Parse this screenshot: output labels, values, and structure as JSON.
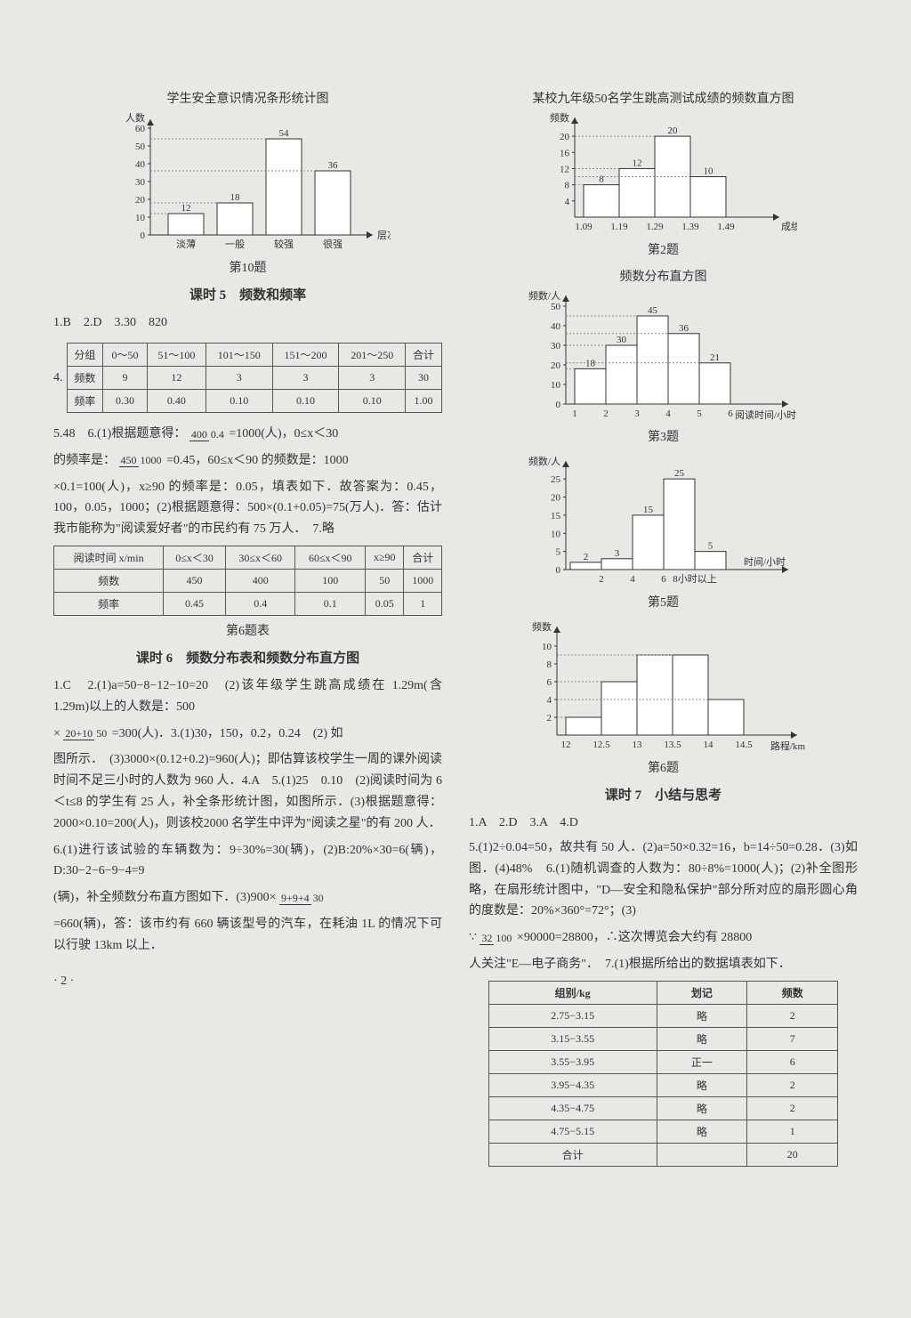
{
  "col1": {
    "chart10": {
      "title": "学生安全意识情况条形统计图",
      "ylabel": "人数",
      "xlabel": "层次",
      "categories": [
        "淡薄",
        "一般",
        "较强",
        "很强"
      ],
      "values": [
        12,
        18,
        54,
        36
      ],
      "yticks": [
        0,
        10,
        20,
        30,
        40,
        50,
        60
      ],
      "ymax": 60,
      "bar_color": "#ffffff",
      "border_color": "#333333",
      "caption": "第10题"
    },
    "section5_title": "课时 5　频数和频率",
    "answers5": "1.B　2.D　3.30　820",
    "table4": {
      "cols": [
        "分组",
        "0～50",
        "51～100",
        "101～150",
        "151～200",
        "201～250",
        "合计"
      ],
      "row1": [
        "频数",
        "9",
        "12",
        "3",
        "3",
        "3",
        "30"
      ],
      "row2": [
        "频率",
        "0.30",
        "0.40",
        "0.10",
        "0.10",
        "0.10",
        "1.00"
      ],
      "prefix": "4."
    },
    "text5a": "5.48　6.(1)根据题意得：",
    "frac1": {
      "n": "400",
      "d": "0.4"
    },
    "text5b": "=1000(人)，0≤x＜30",
    "text5c": "的频率是：",
    "frac2": {
      "n": "450",
      "d": "1000"
    },
    "text5d": "=0.45，60≤x＜90 的频数是：1000",
    "text5e": "×0.1=100(人)，x≥90 的频率是：0.05，填表如下．故答案为：0.45，100，0.05，1000；(2)根据题意得：500×(0.1+0.05)=75(万人)．答：估计我市能称为\"阅读爱好者\"的市民约有 75 万人．　7.略",
    "table6": {
      "cols": [
        "阅读时间 x/min",
        "0≤x＜30",
        "30≤x＜60",
        "60≤x＜90",
        "x≥90",
        "合计"
      ],
      "row1": [
        "频数",
        "450",
        "400",
        "100",
        "50",
        "1000"
      ],
      "row2": [
        "频率",
        "0.45",
        "0.4",
        "0.1",
        "0.05",
        "1"
      ]
    },
    "caption6": "第6题表",
    "section6_title": "课时 6　频数分布表和频数分布直方图",
    "text6a": "1.C　2.(1)a=50−8−12−10=20　(2)该年级学生跳高成绩在 1.29m(含 1.29m)以上的人数是：500",
    "text6b": "×",
    "frac3": {
      "n": "20+10",
      "d": "50"
    },
    "text6c": "=300(人)．3.(1)30，150，0.2，0.24　(2) 如",
    "text6d": "图所示．　(3)3000×(0.12+0.2)=960(人)；即估算该校学生一周的课外阅读时间不足三小时的人数为 960 人．4.A　5.(1)25　0.10　(2)阅读时间为 6＜t≤8 的学生有 25 人，补全条形统计图，如图所示．(3)根据题意得：2000×0.10=200(人)，则该校2000 名学生中评为\"阅读之星\"的有 200 人．",
    "text6e": "6.(1)进行该试验的车辆数为：9÷30%=30(辆)，(2)B:20%×30=6(辆)，D:30−2−6−9−4=9",
    "text6f": "(辆)，补全频数分布直方图如下．(3)900×",
    "frac4": {
      "n": "9+9+4",
      "d": "30"
    },
    "text6g": "=660(辆)，答：该市约有 660 辆该型号的汽车，在耗油 1L 的情况下可以行驶 13km 以上．",
    "page": "· 2 ·"
  },
  "col2": {
    "chart2": {
      "title": "某校九年级50名学生跳高测试成绩的频数直方图",
      "ylabel": "频数",
      "xlabel": "成绩/m",
      "xticks": [
        "1.09",
        "1.19",
        "1.29",
        "1.39",
        "1.49"
      ],
      "values": [
        8,
        12,
        20,
        10
      ],
      "value_labels": [
        "8",
        "12",
        "20",
        "10"
      ],
      "yticks": [
        4,
        8,
        12,
        16,
        20
      ],
      "ymax": 22,
      "caption": "第2题",
      "bar_color": "#ffffff",
      "border_color": "#333333"
    },
    "chart3": {
      "title": "频数分布直方图",
      "ylabel": "频数/人",
      "xlabel": "阅读时间/小时",
      "xticks": [
        "1",
        "2",
        "3",
        "4",
        "5",
        "6"
      ],
      "values": [
        18,
        30,
        45,
        36,
        21
      ],
      "yticks": [
        0,
        10,
        20,
        30,
        40,
        50
      ],
      "ymax": 50,
      "caption": "第3题",
      "bar_color": "#ffffff",
      "border_color": "#333333"
    },
    "chart5": {
      "ylabel": "频数/人",
      "xlabel": "时间/小时",
      "xticks": [
        "2",
        "4",
        "6",
        "8小时以上"
      ],
      "values": [
        2,
        3,
        15,
        25,
        5
      ],
      "yticks": [
        0,
        5,
        10,
        15,
        20,
        25
      ],
      "ymax": 27,
      "caption": "第5题",
      "bar_color": "#ffffff",
      "border_color": "#333333"
    },
    "chart6": {
      "ylabel": "频数",
      "xlabel": "路程/km",
      "xticks": [
        "12",
        "12.5",
        "13",
        "13.5",
        "14",
        "14.5"
      ],
      "values": [
        2,
        6,
        9,
        9,
        4
      ],
      "yticks": [
        2,
        4,
        6,
        8,
        10
      ],
      "ymax": 11,
      "caption": "第6题",
      "bar_color": "#ffffff",
      "border_color": "#333333"
    },
    "section7_title": "课时 7　小结与思考",
    "answers7": "1.A　2.D　3.A　4.D",
    "text7a": "5.(1)2÷0.04=50，故共有 50 人．(2)a=50×0.32=16，b=14÷50=0.28．(3)如图．(4)48%　6.(1)随机调查的人数为：80÷8%=1000(人)；(2)补全图形略，在扇形统计图中，\"D—安全和隐私保护\"部分所对应的扇形圆心角的度数是：20%×360°=72°；(3)",
    "text7b": "∵",
    "frac5": {
      "n": "32",
      "d": "100"
    },
    "text7c": "×90000=28800，∴这次博览会大约有 28800",
    "text7d": "人关注\"E—电子商务\"．　7.(1)根据所给出的数据填表如下．",
    "table7": {
      "cols": [
        "组别/kg",
        "划记",
        "频数"
      ],
      "rows": [
        [
          "2.75−3.15",
          "略",
          "2"
        ],
        [
          "3.15−3.55",
          "略",
          "7"
        ],
        [
          "3.55−3.95",
          "正一",
          "6"
        ],
        [
          "3.95−4.35",
          "略",
          "2"
        ],
        [
          "4.35−4.75",
          "略",
          "2"
        ],
        [
          "4.75−5.15",
          "略",
          "1"
        ],
        [
          "合计",
          "",
          "20"
        ]
      ]
    }
  }
}
